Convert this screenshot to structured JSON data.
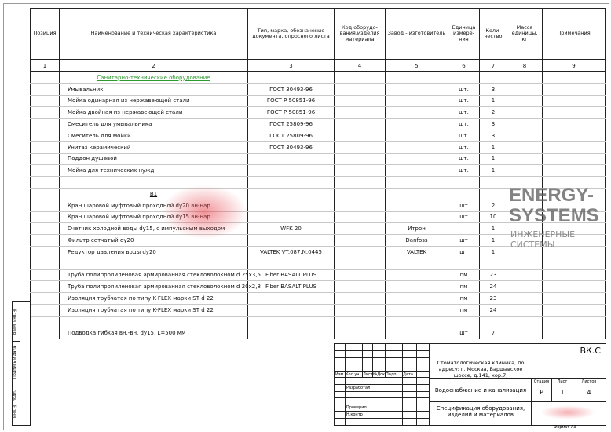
{
  "headers": [
    "Позиция",
    "Наименование и техническая характеристика",
    "Тип, марка, обозначение документа, опросного листа",
    "Код оборудо-вания,изделия материала",
    "Завод - изготовитель",
    "Единица измере-ния",
    "Коли-чество",
    "Масса единицы, кг",
    "Примечания"
  ],
  "column_numbers": [
    "1",
    "2",
    "3",
    "4",
    "5",
    "6",
    "7",
    "8",
    "9"
  ],
  "rows": [
    {
      "name": "Санитарно-технические оборудование",
      "kind": "section"
    },
    {
      "name": "Умывальник",
      "type": "ГОСТ 30493-96",
      "unit": "шт.",
      "qty": "3"
    },
    {
      "name": "Мойка одинарная из нержавеющей стали",
      "type": "ГОСТ Р 50851-96",
      "unit": "шт.",
      "qty": "1"
    },
    {
      "name": "Мойка двойная из нержавеющей стали",
      "type": "ГОСТ Р 50851-96",
      "unit": "шт.",
      "qty": "2"
    },
    {
      "name": "Смеситель для умывальника",
      "type": "ГОСТ 25809-96",
      "unit": "шт.",
      "qty": "3"
    },
    {
      "name": "Смеситель для мойки",
      "type": "ГОСТ 25809-96",
      "unit": "шт.",
      "qty": "3"
    },
    {
      "name": "Унитаз керамический",
      "type": "ГОСТ 30493-96",
      "unit": "шт.",
      "qty": "1"
    },
    {
      "name": "Поддон душевой",
      "unit": "шт.",
      "qty": "1"
    },
    {
      "name": "Мойка для технических нужд",
      "unit": "шт.",
      "qty": "1"
    },
    {
      "name": ""
    },
    {
      "name": "В1",
      "kind": "sub"
    },
    {
      "name": "Кран шаровой муфтовый проходной  dу20 вн-нар.",
      "unit": "шт",
      "qty": "2"
    },
    {
      "name": "Кран шаровой муфтовый проходной  dу15 вн-нар.",
      "unit": "шт",
      "qty": "10"
    },
    {
      "name": "Счетчик холодной воды dу15, с импульсным выходом",
      "type": "WFK 20",
      "maker": "Итрон",
      "qty": "1"
    },
    {
      "name": "Фильтр сетчатый  dу20",
      "maker": "Danfoss",
      "unit": "шт",
      "qty": "1"
    },
    {
      "name": "Редуктор давления воды dу20",
      "type": "VALTEK VT.087.N.0445",
      "maker": "VALTEK",
      "unit": "шт",
      "qty": "1"
    },
    {
      "name": ""
    },
    {
      "name": "Труба полипропиленовая  армированная стекловолокном d 25х3,5",
      "type": "Fiber BASALT PLUS",
      "unit": "пм",
      "qty": "23"
    },
    {
      "name": "Труба полипропиленовая  армированная стекловолокном d 20х2,8",
      "type": "Fiber BASALT PLUS",
      "unit": "пм",
      "qty": "24"
    },
    {
      "name": "Изоляция трубчатая по типу K-FLEX марки ST   d 22",
      "unit": "пм",
      "qty": "23"
    },
    {
      "name": "Изоляция трубчатая по типу K-FLEX марки ST   d 22",
      "unit": "пм",
      "qty": "24"
    },
    {
      "name": ""
    },
    {
      "name": "Подводка гибкая вн.-вн. dу15,  L=500 мм",
      "unit": "шт",
      "qty": "7"
    }
  ],
  "title_block": {
    "code": "ВК.С",
    "object": "Стоматологическая клиника, по адресу: г. Москва, Варшавское шоссе, д.141, кор.7,",
    "section": "Водоснабжение и канализация",
    "sheet_title": "Спецификация оборудования, изделий и материалов",
    "stage_label": "Стадия",
    "sheet_label": "Лист",
    "sheets_label": "Листов",
    "stage": "Р",
    "sheet": "1",
    "sheets": "4",
    "cols": [
      "Изм.",
      "Кол.уч.",
      "Лист",
      "№Док.",
      "Подп.",
      "Дата"
    ],
    "roles": [
      "Разработал",
      "Проверил",
      "Н.контр"
    ],
    "format": "Формат  А3"
  },
  "side_stamps": [
    "Взам. инв. №",
    "Подпись и дата",
    "Инв. № подл."
  ],
  "watermark": {
    "title": "ENERGY-SYSTEMS",
    "subtitle": "ИНЖЕНЕРНЫЕ СИСТЕМЫ"
  }
}
